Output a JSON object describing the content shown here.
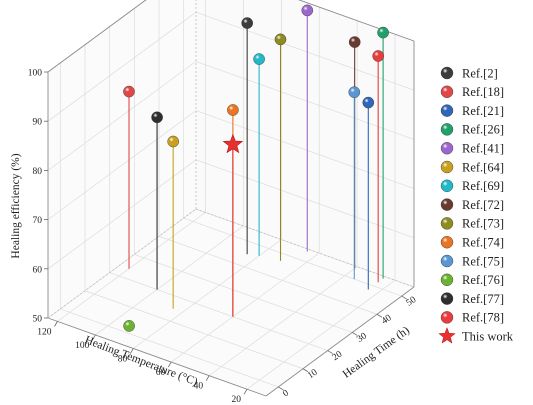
{
  "chart_data": {
    "type": "scatter3d",
    "axes": {
      "x": {
        "label": "Healing Temperature (°C)",
        "ticks": [
          "20",
          "40",
          "60",
          "80",
          "100",
          "120"
        ],
        "range": [
          10,
          125
        ]
      },
      "y": {
        "label": "Healing Time (h)",
        "ticks": [
          "0",
          "10",
          "20",
          "30",
          "40",
          "50"
        ],
        "range": [
          -5,
          55
        ]
      },
      "z": {
        "label": "Healing efficiency (%)",
        "ticks": [
          "50",
          "60",
          "70",
          "80",
          "90",
          "100"
        ],
        "range": [
          50,
          100
        ]
      }
    },
    "grid": true,
    "legend_position": "right",
    "series": [
      {
        "name": "Ref.[2]",
        "color": "#3c3c3c",
        "marker": "sphere",
        "x": 85,
        "y": 45,
        "z": 97
      },
      {
        "name": "Ref.[18]",
        "color": "#e04848",
        "marker": "sphere",
        "x": 120,
        "y": 24,
        "z": 86
      },
      {
        "name": "Ref.[21]",
        "color": "#2f66b8",
        "marker": "sphere",
        "x": 25,
        "y": 48,
        "z": 88
      },
      {
        "name": "Ref.[26]",
        "color": "#22a06b",
        "marker": "sphere",
        "x": 25,
        "y": 54,
        "z": 100
      },
      {
        "name": "Ref.[41]",
        "color": "#9b67cc",
        "marker": "sphere",
        "x": 65,
        "y": 54,
        "z": 99
      },
      {
        "name": "Ref.[64]",
        "color": "#c8a020",
        "marker": "sphere",
        "x": 85,
        "y": 15,
        "z": 84
      },
      {
        "name": "Ref.[69]",
        "color": "#22b8c8",
        "marker": "sphere",
        "x": 80,
        "y": 46,
        "z": 90
      },
      {
        "name": "Ref.[72]",
        "color": "#6a3a2e",
        "marker": "sphere",
        "x": 40,
        "y": 54,
        "z": 96
      },
      {
        "name": "Ref.[73]",
        "color": "#8c8c22",
        "marker": "sphere",
        "x": 70,
        "y": 47,
        "z": 95
      },
      {
        "name": "Ref.[74]",
        "color": "#e97422",
        "marker": "sphere",
        "x": 60,
        "y": 20,
        "z": 92
      },
      {
        "name": "Ref.[75]",
        "color": "#5a96d4",
        "marker": "sphere",
        "x": 35,
        "y": 50,
        "z": 88
      },
      {
        "name": "Ref.[76]",
        "color": "#6bb232",
        "marker": "sphere",
        "x": 90,
        "y": 1,
        "z": 51
      },
      {
        "name": "Ref.[77]",
        "color": "#2e2e2e",
        "marker": "sphere",
        "x": 100,
        "y": 20,
        "z": 85
      },
      {
        "name": "Ref.[78]",
        "color": "#ea3c3c",
        "marker": "sphere",
        "x": 25,
        "y": 52,
        "z": 96
      },
      {
        "name": "This work",
        "color": "#e83030",
        "marker": "star",
        "x": 60,
        "y": 20,
        "z": 85
      }
    ]
  }
}
